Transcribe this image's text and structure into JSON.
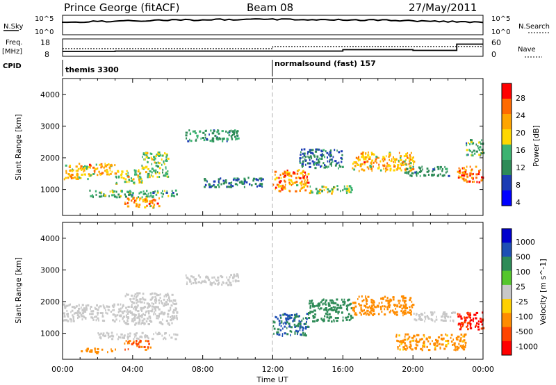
{
  "header": {
    "title": "Prince George (fitACF)",
    "beam": "Beam 08",
    "date": "27/May/2011"
  },
  "nsky": {
    "label": "N.Sky",
    "ticks": [
      "10^5",
      "10^0"
    ],
    "right_label": "N.Search",
    "right_ticks": [
      "10^5",
      "10^0"
    ]
  },
  "freq": {
    "label_line1": "Freq.",
    "label_line2": "[MHz]",
    "ticks": [
      "18",
      "8"
    ],
    "right_label": "Nave",
    "right_ticks": [
      "60",
      "0"
    ],
    "cpid_label": "CPID"
  },
  "cpid": {
    "segments": [
      {
        "label": "themis 3300",
        "start_hour": 0
      },
      {
        "label": "normalsound (fast) 157",
        "start_hour": 12
      }
    ]
  },
  "time_axis": {
    "label": "Time UT",
    "ticks": [
      "00:00",
      "04:00",
      "08:00",
      "12:00",
      "16:00",
      "20:00",
      "00:00"
    ]
  },
  "colors": {
    "power_scale": [
      "#0000ff",
      "#1c3cb4",
      "#2e8b57",
      "#3cb371",
      "#ffd700",
      "#ffa500",
      "#ff6a00",
      "#ff0000"
    ],
    "velocity_scale": [
      "#0000cd",
      "#1e4fb4",
      "#2e8b57",
      "#55c62c",
      "#c8c8c8",
      "#ffd000",
      "#ff8c00",
      "#ff4500",
      "#ff0000"
    ]
  },
  "chart_data": [
    {
      "type": "heatmap",
      "name": "power-panel",
      "ylabel": "Slant Range [km]",
      "xlabel": "Time UT",
      "xlim": [
        0,
        24
      ],
      "ylim": [
        180,
        4500
      ],
      "yticks": [
        1000,
        2000,
        3000,
        4000
      ],
      "colorbar": {
        "label": "Power [dB]",
        "range": [
          0,
          30
        ],
        "ticks": [
          "28",
          "24",
          "20",
          "16",
          "12",
          "8",
          "4"
        ]
      },
      "echo_bands": [
        {
          "t0": 0.0,
          "t1": 1.5,
          "r0": 1350,
          "r1": 1850,
          "power": 18
        },
        {
          "t0": 1.5,
          "t1": 3.0,
          "r0": 1450,
          "r1": 1850,
          "power": 20
        },
        {
          "t0": 3.0,
          "t1": 4.5,
          "r0": 1200,
          "r1": 1650,
          "power": 16
        },
        {
          "t0": 4.5,
          "t1": 6.0,
          "r0": 1400,
          "r1": 2200,
          "power": 14
        },
        {
          "t0": 1.5,
          "t1": 6.5,
          "r0": 780,
          "r1": 1000,
          "power": 12
        },
        {
          "t0": 3.5,
          "t1": 5.5,
          "r0": 450,
          "r1": 780,
          "power": 22
        },
        {
          "t0": 7.0,
          "t1": 10.0,
          "r0": 2550,
          "r1": 2900,
          "power": 10
        },
        {
          "t0": 8.0,
          "t1": 11.5,
          "r0": 1100,
          "r1": 1400,
          "power": 8
        },
        {
          "t0": 12.0,
          "t1": 14.0,
          "r0": 950,
          "r1": 1650,
          "power": 22
        },
        {
          "t0": 14.0,
          "t1": 16.5,
          "r0": 900,
          "r1": 1150,
          "power": 14
        },
        {
          "t0": 13.5,
          "t1": 16.0,
          "r0": 1700,
          "r1": 2300,
          "power": 8
        },
        {
          "t0": 16.5,
          "t1": 20.0,
          "r0": 1600,
          "r1": 2200,
          "power": 20
        },
        {
          "t0": 19.5,
          "t1": 22.0,
          "r0": 1450,
          "r1": 1750,
          "power": 10
        },
        {
          "t0": 22.5,
          "t1": 24.0,
          "r0": 1250,
          "r1": 1750,
          "power": 24
        },
        {
          "t0": 23.0,
          "t1": 24.0,
          "r0": 2100,
          "r1": 2600,
          "power": 12
        }
      ]
    },
    {
      "type": "heatmap",
      "name": "velocity-panel",
      "ylabel": "Slant Range [km]",
      "xlabel": "Time UT",
      "xlim": [
        0,
        24
      ],
      "ylim": [
        180,
        4500
      ],
      "yticks": [
        1000,
        2000,
        3000,
        4000
      ],
      "colorbar": {
        "label": "Velocity [m s^-1]",
        "ticks": [
          "1000",
          "500",
          "100",
          "25",
          "-25",
          "-100",
          "-500",
          "-1000"
        ]
      },
      "echo_bands": [
        {
          "t0": 0.0,
          "t1": 3.5,
          "r0": 1400,
          "r1": 1950,
          "velocity": 0
        },
        {
          "t0": 3.5,
          "t1": 6.5,
          "r0": 1300,
          "r1": 2300,
          "velocity": 0
        },
        {
          "t0": 2.0,
          "t1": 6.5,
          "r0": 850,
          "r1": 1050,
          "velocity": 0
        },
        {
          "t0": 3.5,
          "t1": 5.0,
          "r0": 500,
          "r1": 800,
          "velocity": -300
        },
        {
          "t0": 1.0,
          "t1": 3.0,
          "r0": 400,
          "r1": 550,
          "velocity": -200
        },
        {
          "t0": 7.0,
          "t1": 10.0,
          "r0": 2550,
          "r1": 2900,
          "velocity": 0
        },
        {
          "t0": 12.0,
          "t1": 14.0,
          "r0": 950,
          "r1": 1650,
          "velocity": 300
        },
        {
          "t0": 14.0,
          "t1": 16.5,
          "r0": 1400,
          "r1": 2100,
          "velocity": 200
        },
        {
          "t0": 16.5,
          "t1": 20.0,
          "r0": 1600,
          "r1": 2200,
          "velocity": -150
        },
        {
          "t0": 20.0,
          "t1": 22.5,
          "r0": 1400,
          "r1": 1700,
          "velocity": 0
        },
        {
          "t0": 22.5,
          "t1": 24.0,
          "r0": 1150,
          "r1": 1700,
          "velocity": -800
        },
        {
          "t0": 19.0,
          "t1": 23.0,
          "r0": 500,
          "r1": 1000,
          "velocity": -80
        }
      ]
    }
  ]
}
